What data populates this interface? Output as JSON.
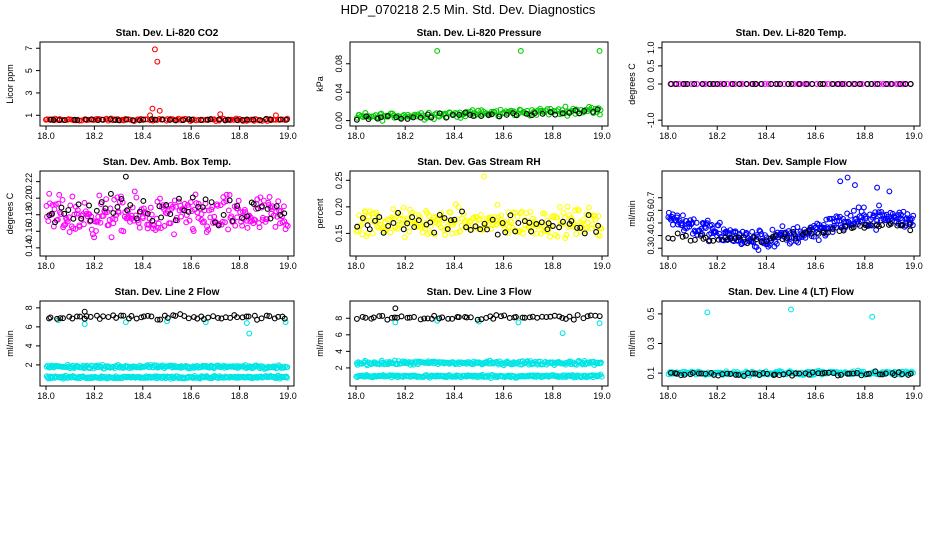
{
  "figure_title": "HDP_070218  2.5 Min. Std. Dev. Diagnostics",
  "chart_data": [
    {
      "type": "scatter",
      "title": "Stan. Dev. Li-820 CO2",
      "xlabel": "",
      "ylabel": "Licor ppm",
      "xlim": [
        18.0,
        19.0
      ],
      "ylim": [
        0.4,
        7.2
      ],
      "xticks": [
        18.0,
        18.2,
        18.4,
        18.6,
        18.8,
        19.0
      ],
      "xtick_labels": [
        "18.0",
        "18.2",
        "18.4",
        "18.6",
        "18.8",
        "19.0"
      ],
      "yticks": [
        1,
        3,
        5,
        7
      ],
      "ytick_labels": [
        "1",
        "3",
        "5",
        "7"
      ],
      "grid": false,
      "series": [
        {
          "color": "#ff0000",
          "points_x": [
            18.0,
            18.25,
            18.43,
            18.44,
            18.45,
            18.46,
            18.47,
            18.72,
            18.95
          ],
          "points_y": [
            0.6,
            0.7,
            1.0,
            1.6,
            6.9,
            5.8,
            1.4,
            1.1,
            1.0
          ],
          "band": {
            "x_from": 18.0,
            "x_to": 19.0,
            "center": 0.6,
            "spread": 0.15,
            "count": 110
          }
        },
        {
          "color": "#000000",
          "band": {
            "x_from": 18.0,
            "x_to": 19.0,
            "center": 0.6,
            "spread": 0.1,
            "count": 40
          }
        }
      ]
    },
    {
      "type": "scatter",
      "title": "Stan. Dev. Li-820 Pressure",
      "xlabel": "",
      "ylabel": "kPa",
      "xlim": [
        18.0,
        19.0
      ],
      "ylim": [
        -0.002,
        0.105
      ],
      "xticks": [
        18.0,
        18.2,
        18.4,
        18.6,
        18.8,
        19.0
      ],
      "xtick_labels": [
        "18.0",
        "18.2",
        "18.4",
        "18.6",
        "18.8",
        "19.0"
      ],
      "yticks": [
        0.0,
        0.04,
        0.08
      ],
      "ytick_labels": [
        "0.00",
        "0.04",
        "0.08"
      ],
      "grid": false,
      "series": [
        {
          "color": "#00cc00",
          "points_x": [
            18.33,
            18.67,
            18.99
          ],
          "points_y": [
            0.098,
            0.098,
            0.098
          ],
          "band": {
            "x_from": 18.0,
            "x_to": 19.0,
            "center_from": 0.005,
            "center_to": 0.015,
            "spread": 0.008,
            "count": 160
          }
        },
        {
          "color": "#000000",
          "band": {
            "x_from": 18.0,
            "x_to": 19.0,
            "center_from": 0.004,
            "center_to": 0.012,
            "spread": 0.006,
            "count": 40
          }
        }
      ]
    },
    {
      "type": "scatter",
      "title": "Stan. Dev. Li-820 Temp.",
      "xlabel": "",
      "ylabel": "degrees C",
      "xlim": [
        18.0,
        19.0
      ],
      "ylim": [
        -1.05,
        1.05
      ],
      "xticks": [
        18.0,
        18.2,
        18.4,
        18.6,
        18.8,
        19.0
      ],
      "xtick_labels": [
        "18.0",
        "18.2",
        "18.4",
        "18.6",
        "18.8",
        "19.0"
      ],
      "yticks": [
        -1.0,
        0.0,
        0.5,
        1.0
      ],
      "ytick_labels": [
        "-1.0",
        "0.0",
        "0.5",
        "1.0"
      ],
      "grid": false,
      "series": [
        {
          "color": "#ff00ff",
          "band": {
            "x_from": 18.0,
            "x_to": 19.0,
            "center": 0.0,
            "spread": 0.0,
            "count": 60
          }
        },
        {
          "color": "#000000",
          "band": {
            "x_from": 18.0,
            "x_to": 19.0,
            "center": 0.0,
            "spread": 0.0,
            "count": 40
          }
        }
      ]
    },
    {
      "type": "scatter",
      "title": "Stan. Dev. Amb. Box Temp.",
      "xlabel": "",
      "ylabel": "degrees C",
      "xlim": [
        18.0,
        19.0
      ],
      "ylim": [
        0.135,
        0.228
      ],
      "xticks": [
        18.0,
        18.2,
        18.4,
        18.6,
        18.8,
        19.0
      ],
      "xtick_labels": [
        "18.0",
        "18.2",
        "18.4",
        "18.6",
        "18.8",
        "19.0"
      ],
      "yticks": [
        0.14,
        0.16,
        0.18,
        0.2,
        0.22
      ],
      "ytick_labels": [
        "0.14",
        "0.16",
        "0.18",
        "0.20",
        "0.22"
      ],
      "grid": false,
      "series": [
        {
          "color": "#ff00ff",
          "band": {
            "x_from": 18.0,
            "x_to": 19.0,
            "center": 0.178,
            "spread": 0.035,
            "count": 260
          }
        },
        {
          "color": "#000000",
          "points_x": [
            18.33
          ],
          "points_y": [
            0.226
          ],
          "band": {
            "x_from": 18.0,
            "x_to": 19.0,
            "center": 0.185,
            "spread": 0.03,
            "count": 55
          }
        }
      ]
    },
    {
      "type": "scatter",
      "title": "Stan. Dev. Gas Stream RH",
      "xlabel": "",
      "ylabel": "percent",
      "xlim": [
        18.0,
        19.0
      ],
      "ylim": [
        0.115,
        0.26
      ],
      "xticks": [
        18.0,
        18.2,
        18.4,
        18.6,
        18.8,
        19.0
      ],
      "xtick_labels": [
        "18.0",
        "18.2",
        "18.4",
        "18.6",
        "18.8",
        "19.0"
      ],
      "yticks": [
        0.15,
        0.2,
        0.25
      ],
      "ytick_labels": [
        "0.15",
        "0.20",
        "0.25"
      ],
      "grid": false,
      "series": [
        {
          "color": "#ffff00",
          "points_x": [
            18.52
          ],
          "points_y": [
            0.257
          ],
          "band": {
            "x_from": 18.0,
            "x_to": 19.0,
            "center": 0.17,
            "spread": 0.04,
            "count": 260
          }
        },
        {
          "color": "#000000",
          "band": {
            "x_from": 18.0,
            "x_to": 19.0,
            "center": 0.17,
            "spread": 0.035,
            "count": 55
          }
        }
      ]
    },
    {
      "type": "scatter",
      "title": "Stan. Dev. Sample Flow",
      "xlabel": "",
      "ylabel": "ml/min",
      "xlim": [
        18.0,
        19.0
      ],
      "ylim": [
        0.27,
        0.88
      ],
      "xticks": [
        18.0,
        18.2,
        18.4,
        18.6,
        18.8,
        19.0
      ],
      "xtick_labels": [
        "18.0",
        "18.2",
        "18.4",
        "18.6",
        "18.8",
        "19.0"
      ],
      "yticks": [
        0.3,
        0.4,
        0.5,
        0.6,
        0.7
      ],
      "ytick_labels": [
        "0.3",
        "0.4",
        "0.5",
        "0.6",
        "0.7"
      ],
      "grid": false,
      "series": [
        {
          "color": "#0000ff",
          "points_x": [
            18.7,
            18.73,
            18.76,
            18.85,
            18.9
          ],
          "points_y": [
            0.83,
            0.86,
            0.8,
            0.78,
            0.75
          ],
          "curve": {
            "x": [
              18.0,
              18.1,
              18.2,
              18.3,
              18.35,
              18.45,
              18.55,
              18.65,
              18.75,
              18.85,
              19.0
            ],
            "y": [
              0.55,
              0.48,
              0.42,
              0.38,
              0.36,
              0.38,
              0.42,
              0.48,
              0.52,
              0.55,
              0.52
            ]
          },
          "spread": 0.12,
          "count": 300
        },
        {
          "color": "#000000",
          "curve": {
            "x": [
              18.0,
              18.2,
              18.35,
              18.5,
              18.7,
              19.0
            ],
            "y": [
              0.4,
              0.38,
              0.36,
              0.4,
              0.46,
              0.48
            ]
          },
          "spread": 0.05,
          "count": 60
        }
      ]
    },
    {
      "type": "scatter",
      "title": "Stan. Dev. Line 2 Flow",
      "xlabel": "",
      "ylabel": "ml/min",
      "xlim": [
        18.0,
        19.0
      ],
      "ylim": [
        0.2,
        8.3
      ],
      "xticks": [
        18.0,
        18.2,
        18.4,
        18.6,
        18.8,
        19.0
      ],
      "xtick_labels": [
        "18.0",
        "18.2",
        "18.4",
        "18.6",
        "18.8",
        "19.0"
      ],
      "yticks": [
        2,
        4,
        6,
        8
      ],
      "ytick_labels": [
        "2",
        "4",
        "6",
        "8"
      ],
      "grid": false,
      "series": [
        {
          "color": "#00e5e5",
          "points_x": [
            18.05,
            18.16,
            18.33,
            18.5,
            18.66,
            18.83,
            18.84,
            18.99
          ],
          "points_y": [
            6.7,
            6.3,
            6.5,
            6.6,
            6.5,
            6.4,
            5.3,
            6.5
          ],
          "bands": [
            {
              "x_from": 18.0,
              "x_to": 19.0,
              "center": 1.8,
              "spread": 0.25,
              "count": 220
            },
            {
              "x_from": 18.0,
              "x_to": 19.0,
              "center": 0.7,
              "spread": 0.2,
              "count": 220
            }
          ]
        },
        {
          "color": "#000000",
          "points_x": [
            18.16
          ],
          "points_y": [
            7.6
          ],
          "band": {
            "x_from": 18.0,
            "x_to": 19.0,
            "center": 7.0,
            "spread": 0.4,
            "count": 60
          }
        }
      ]
    },
    {
      "type": "scatter",
      "title": "Stan. Dev. Line 3 Flow",
      "xlabel": "",
      "ylabel": "ml/min",
      "xlim": [
        18.0,
        19.0
      ],
      "ylim": [
        0.3,
        9.6
      ],
      "xticks": [
        18.0,
        18.2,
        18.4,
        18.6,
        18.8,
        19.0
      ],
      "xtick_labels": [
        "18.0",
        "18.2",
        "18.4",
        "18.6",
        "18.8",
        "19.0"
      ],
      "yticks": [
        2,
        4,
        6,
        8
      ],
      "ytick_labels": [
        "2",
        "4",
        "6",
        "8"
      ],
      "grid": false,
      "series": [
        {
          "color": "#00e5e5",
          "points_x": [
            18.16,
            18.33,
            18.5,
            18.66,
            18.84,
            18.99
          ],
          "points_y": [
            7.5,
            7.7,
            7.6,
            7.5,
            6.2,
            7.4
          ],
          "bands": [
            {
              "x_from": 18.0,
              "x_to": 19.0,
              "center": 2.6,
              "spread": 0.35,
              "count": 220
            },
            {
              "x_from": 18.0,
              "x_to": 19.0,
              "center": 1.0,
              "spread": 0.25,
              "count": 220
            }
          ]
        },
        {
          "color": "#000000",
          "points_x": [
            18.16
          ],
          "points_y": [
            9.2
          ],
          "band": {
            "x_from": 18.0,
            "x_to": 19.0,
            "center": 8.1,
            "spread": 0.45,
            "count": 60
          }
        }
      ]
    },
    {
      "type": "scatter",
      "title": "Stan. Dev. Line 4 (LT) Flow",
      "xlabel": "",
      "ylabel": "ml/min",
      "xlim": [
        18.0,
        19.0
      ],
      "ylim": [
        0.04,
        0.56
      ],
      "xticks": [
        18.0,
        18.2,
        18.4,
        18.6,
        18.8,
        19.0
      ],
      "xtick_labels": [
        "18.0",
        "18.2",
        "18.4",
        "18.6",
        "18.8",
        "19.0"
      ],
      "yticks": [
        0.1,
        0.3,
        0.5
      ],
      "ytick_labels": [
        "0.1",
        "0.3",
        "0.5"
      ],
      "grid": false,
      "series": [
        {
          "color": "#00e5e5",
          "points_x": [
            18.16,
            18.5,
            18.83
          ],
          "points_y": [
            0.51,
            0.53,
            0.48
          ],
          "band": {
            "x_from": 18.0,
            "x_to": 19.0,
            "center": 0.1,
            "spread": 0.02,
            "count": 200
          }
        },
        {
          "color": "#000000",
          "band": {
            "x_from": 18.0,
            "x_to": 19.0,
            "center": 0.095,
            "spread": 0.02,
            "count": 60
          }
        }
      ]
    }
  ]
}
